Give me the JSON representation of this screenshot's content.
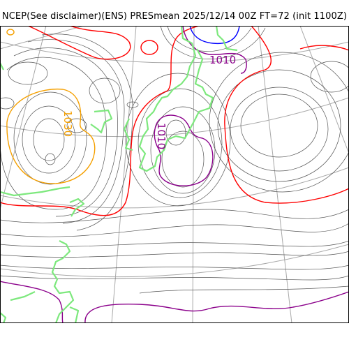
{
  "title": "NCEP(See disclaimer)(ENS) PRESmean 2025/12/14 00Z FT=72 (init 1100Z)",
  "labels": {
    "high_center": "1030",
    "low_center": "1010",
    "low_north": "1010"
  },
  "colors": {
    "grid": "#a8a8a8",
    "isobar": "#555555",
    "isobar_1030": "#f5a000",
    "isobar_1020": "#ff0000",
    "isobar_1010": "#8b008b",
    "isobar_1000": "#0000ff",
    "coastline": "#7de87d"
  }
}
